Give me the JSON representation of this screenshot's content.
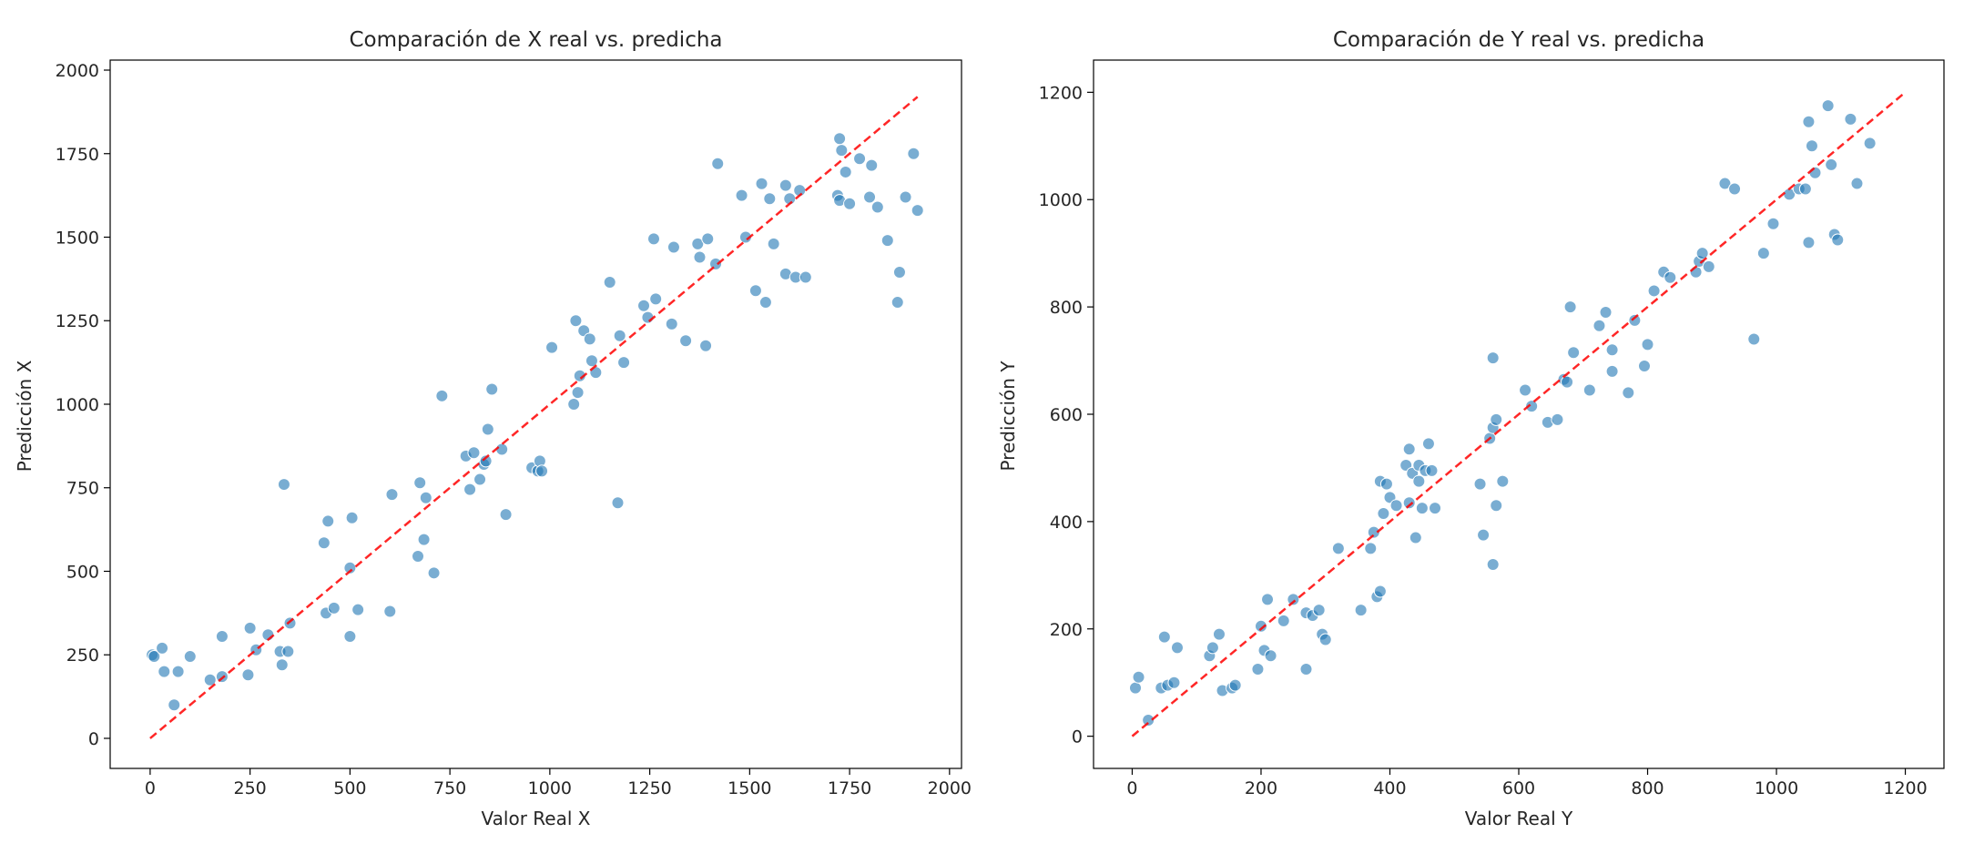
{
  "chart_data": [
    {
      "type": "scatter",
      "title": "Comparación de X real vs. predicha",
      "xlabel": "Valor Real X",
      "ylabel": "Predicción X",
      "xlim": [
        -100,
        2030
      ],
      "ylim": [
        -90,
        2030
      ],
      "xticks": [
        0,
        250,
        500,
        750,
        1000,
        1250,
        1500,
        1750,
        2000
      ],
      "yticks": [
        0,
        250,
        500,
        750,
        1000,
        1250,
        1500,
        1750,
        2000
      ],
      "xtick_labels": [
        "0",
        "250",
        "500",
        "750",
        "1000",
        "1250",
        "1500",
        "1750",
        "2000"
      ],
      "ytick_labels": [
        "0",
        "250",
        "500",
        "750",
        "1000",
        "1250",
        "1500",
        "1750",
        "2000"
      ],
      "grid": false,
      "point_color": "#1f77b4",
      "line_color": "#ff0000",
      "reference_line": [
        [
          0,
          0
        ],
        [
          1920,
          1920
        ]
      ],
      "points": [
        [
          5,
          250
        ],
        [
          10,
          245
        ],
        [
          30,
          270
        ],
        [
          35,
          200
        ],
        [
          60,
          100
        ],
        [
          70,
          200
        ],
        [
          100,
          245
        ],
        [
          150,
          175
        ],
        [
          180,
          305
        ],
        [
          180,
          185
        ],
        [
          245,
          190
        ],
        [
          250,
          330
        ],
        [
          265,
          265
        ],
        [
          295,
          310
        ],
        [
          325,
          260
        ],
        [
          330,
          220
        ],
        [
          335,
          760
        ],
        [
          345,
          260
        ],
        [
          350,
          345
        ],
        [
          435,
          585
        ],
        [
          440,
          375
        ],
        [
          445,
          650
        ],
        [
          460,
          390
        ],
        [
          500,
          510
        ],
        [
          500,
          305
        ],
        [
          505,
          660
        ],
        [
          520,
          385
        ],
        [
          600,
          380
        ],
        [
          605,
          730
        ],
        [
          670,
          545
        ],
        [
          675,
          765
        ],
        [
          685,
          595
        ],
        [
          690,
          720
        ],
        [
          710,
          495
        ],
        [
          730,
          1025
        ],
        [
          790,
          845
        ],
        [
          800,
          745
        ],
        [
          810,
          855
        ],
        [
          825,
          775
        ],
        [
          835,
          820
        ],
        [
          840,
          830
        ],
        [
          845,
          925
        ],
        [
          855,
          1045
        ],
        [
          880,
          865
        ],
        [
          890,
          670
        ],
        [
          955,
          810
        ],
        [
          970,
          800
        ],
        [
          975,
          830
        ],
        [
          980,
          800
        ],
        [
          1005,
          1170
        ],
        [
          1060,
          1000
        ],
        [
          1065,
          1250
        ],
        [
          1070,
          1035
        ],
        [
          1075,
          1085
        ],
        [
          1085,
          1220
        ],
        [
          1100,
          1195
        ],
        [
          1105,
          1130
        ],
        [
          1115,
          1095
        ],
        [
          1150,
          1365
        ],
        [
          1170,
          705
        ],
        [
          1175,
          1205
        ],
        [
          1185,
          1125
        ],
        [
          1235,
          1295
        ],
        [
          1245,
          1260
        ],
        [
          1260,
          1495
        ],
        [
          1265,
          1315
        ],
        [
          1305,
          1240
        ],
        [
          1310,
          1470
        ],
        [
          1340,
          1190
        ],
        [
          1370,
          1480
        ],
        [
          1375,
          1440
        ],
        [
          1390,
          1175
        ],
        [
          1395,
          1495
        ],
        [
          1415,
          1420
        ],
        [
          1420,
          1720
        ],
        [
          1480,
          1625
        ],
        [
          1490,
          1500
        ],
        [
          1515,
          1340
        ],
        [
          1530,
          1660
        ],
        [
          1540,
          1305
        ],
        [
          1550,
          1615
        ],
        [
          1560,
          1480
        ],
        [
          1590,
          1655
        ],
        [
          1590,
          1390
        ],
        [
          1600,
          1615
        ],
        [
          1615,
          1380
        ],
        [
          1625,
          1640
        ],
        [
          1640,
          1380
        ],
        [
          1720,
          1625
        ],
        [
          1725,
          1610
        ],
        [
          1725,
          1795
        ],
        [
          1730,
          1760
        ],
        [
          1740,
          1695
        ],
        [
          1750,
          1600
        ],
        [
          1775,
          1735
        ],
        [
          1800,
          1620
        ],
        [
          1805,
          1715
        ],
        [
          1820,
          1590
        ],
        [
          1845,
          1490
        ],
        [
          1870,
          1305
        ],
        [
          1875,
          1395
        ],
        [
          1890,
          1620
        ],
        [
          1910,
          1750
        ],
        [
          1920,
          1580
        ]
      ]
    },
    {
      "type": "scatter",
      "title": "Comparación de Y real vs. predicha",
      "xlabel": "Valor Real Y",
      "ylabel": "Predicción Y",
      "xlim": [
        -60,
        1260
      ],
      "ylim": [
        -60,
        1260
      ],
      "xticks": [
        0,
        200,
        400,
        600,
        800,
        1000,
        1200
      ],
      "yticks": [
        0,
        200,
        400,
        600,
        800,
        1000,
        1200
      ],
      "xtick_labels": [
        "0",
        "200",
        "400",
        "600",
        "800",
        "1000",
        "1200"
      ],
      "ytick_labels": [
        "0",
        "200",
        "400",
        "600",
        "800",
        "1000",
        "1200"
      ],
      "grid": false,
      "point_color": "#1f77b4",
      "line_color": "#ff0000",
      "reference_line": [
        [
          0,
          0
        ],
        [
          1200,
          1200
        ]
      ],
      "points": [
        [
          5,
          90
        ],
        [
          10,
          110
        ],
        [
          25,
          30
        ],
        [
          45,
          90
        ],
        [
          50,
          185
        ],
        [
          55,
          95
        ],
        [
          65,
          100
        ],
        [
          70,
          165
        ],
        [
          120,
          150
        ],
        [
          125,
          165
        ],
        [
          135,
          190
        ],
        [
          140,
          85
        ],
        [
          155,
          90
        ],
        [
          160,
          95
        ],
        [
          195,
          125
        ],
        [
          200,
          205
        ],
        [
          205,
          160
        ],
        [
          210,
          255
        ],
        [
          215,
          150
        ],
        [
          235,
          215
        ],
        [
          250,
          255
        ],
        [
          270,
          125
        ],
        [
          270,
          230
        ],
        [
          280,
          225
        ],
        [
          290,
          235
        ],
        [
          295,
          190
        ],
        [
          300,
          180
        ],
        [
          320,
          350
        ],
        [
          355,
          235
        ],
        [
          370,
          350
        ],
        [
          375,
          380
        ],
        [
          380,
          260
        ],
        [
          385,
          270
        ],
        [
          385,
          475
        ],
        [
          390,
          415
        ],
        [
          395,
          470
        ],
        [
          400,
          445
        ],
        [
          410,
          430
        ],
        [
          425,
          505
        ],
        [
          430,
          435
        ],
        [
          430,
          535
        ],
        [
          435,
          490
        ],
        [
          440,
          370
        ],
        [
          445,
          505
        ],
        [
          445,
          475
        ],
        [
          450,
          425
        ],
        [
          455,
          495
        ],
        [
          460,
          545
        ],
        [
          465,
          495
        ],
        [
          470,
          425
        ],
        [
          540,
          470
        ],
        [
          545,
          375
        ],
        [
          555,
          555
        ],
        [
          560,
          320
        ],
        [
          560,
          705
        ],
        [
          560,
          575
        ],
        [
          565,
          590
        ],
        [
          565,
          430
        ],
        [
          575,
          475
        ],
        [
          610,
          645
        ],
        [
          620,
          615
        ],
        [
          645,
          585
        ],
        [
          660,
          590
        ],
        [
          670,
          665
        ],
        [
          675,
          660
        ],
        [
          680,
          800
        ],
        [
          685,
          715
        ],
        [
          710,
          645
        ],
        [
          725,
          765
        ],
        [
          735,
          790
        ],
        [
          745,
          680
        ],
        [
          745,
          720
        ],
        [
          770,
          640
        ],
        [
          780,
          775
        ],
        [
          795,
          690
        ],
        [
          800,
          730
        ],
        [
          810,
          830
        ],
        [
          825,
          865
        ],
        [
          835,
          855
        ],
        [
          875,
          865
        ],
        [
          880,
          885
        ],
        [
          885,
          900
        ],
        [
          895,
          875
        ],
        [
          920,
          1030
        ],
        [
          935,
          1020
        ],
        [
          965,
          740
        ],
        [
          980,
          900
        ],
        [
          995,
          955
        ],
        [
          1020,
          1010
        ],
        [
          1035,
          1020
        ],
        [
          1045,
          1020
        ],
        [
          1050,
          920
        ],
        [
          1050,
          1145
        ],
        [
          1055,
          1100
        ],
        [
          1060,
          1050
        ],
        [
          1080,
          1175
        ],
        [
          1085,
          1065
        ],
        [
          1090,
          935
        ],
        [
          1095,
          925
        ],
        [
          1115,
          1150
        ],
        [
          1125,
          1030
        ],
        [
          1145,
          1105
        ]
      ]
    }
  ]
}
